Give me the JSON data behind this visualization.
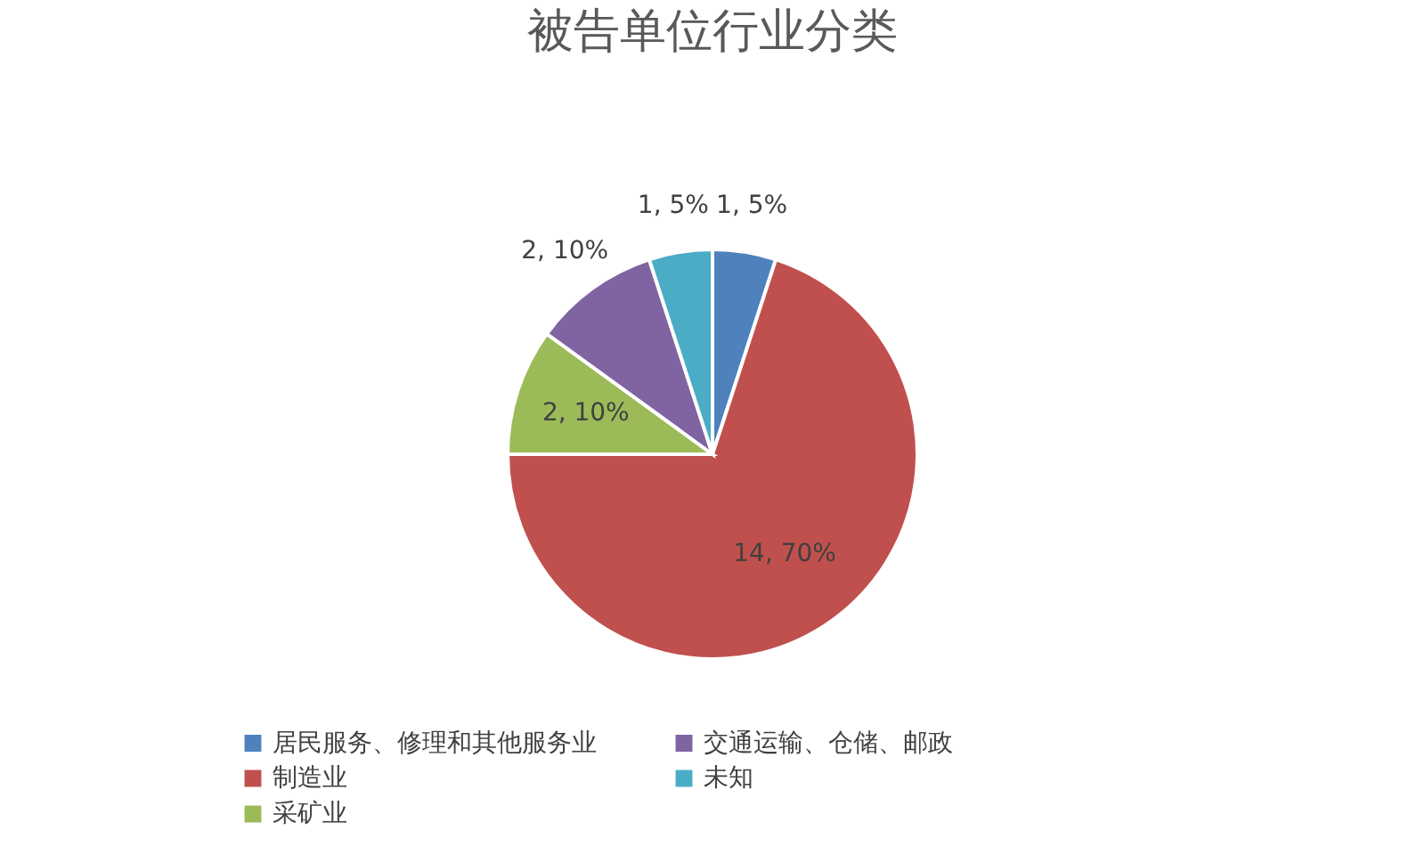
{
  "chart_data": {
    "type": "pie",
    "title": "被告单位行业分类",
    "categories": [
      "居民服务、修理和其他服务业",
      "制造业",
      "采矿业",
      "交通运输、仓储、邮政",
      "未知"
    ],
    "values": [
      1,
      14,
      2,
      2,
      1
    ],
    "colors": [
      "#4f81bd",
      "#c0504d",
      "#9bbb59",
      "#8064a2",
      "#4bacc6"
    ],
    "value_labels": [
      "1, 5%",
      "14, 70%",
      "2, 10%",
      "2, 10%",
      "1, 5%"
    ],
    "legend": "bottom"
  }
}
